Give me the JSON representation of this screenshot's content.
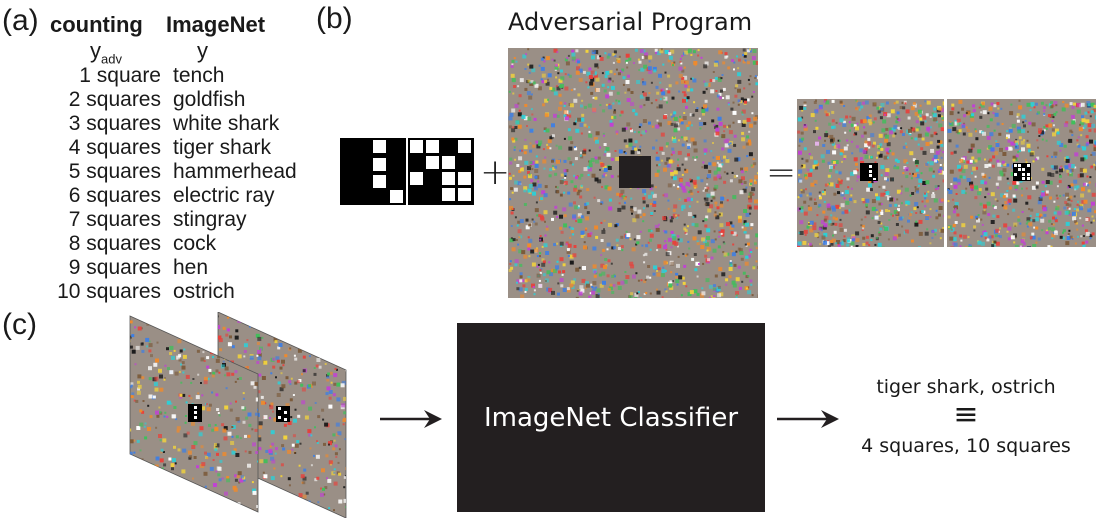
{
  "panel_a": {
    "label": "(a)",
    "col_counting": "counting",
    "col_imagenet": "ImageNet",
    "sub_counting_base": "y",
    "sub_counting_subscript": "adv",
    "sub_imagenet": "y",
    "rows": [
      {
        "count": "1 square",
        "class": "tench"
      },
      {
        "count": "2 squares",
        "class": "goldfish"
      },
      {
        "count": "3 squares",
        "class": "white shark"
      },
      {
        "count": "4 squares",
        "class": "tiger shark"
      },
      {
        "count": "5 squares",
        "class": "hammerhead"
      },
      {
        "count": "6 squares",
        "class": "electric ray"
      },
      {
        "count": "7 squares",
        "class": "stingray"
      },
      {
        "count": "8 squares",
        "class": "cock"
      },
      {
        "count": "9 squares",
        "class": "hen"
      },
      {
        "count": "10 squares",
        "class": "ostrich"
      }
    ]
  },
  "panel_b": {
    "label": "(b)",
    "title": "Adversarial Program",
    "plus": "+",
    "equals": "="
  },
  "panel_c": {
    "label": "(c)",
    "classifier": "ImageNet Classifier",
    "output_top": "tiger shark, ostrich",
    "equiv": "≡",
    "output_bottom": "4 squares, 10 squares"
  },
  "colors": {
    "dark": "#231f20",
    "noise_base": "#9a8f86"
  }
}
